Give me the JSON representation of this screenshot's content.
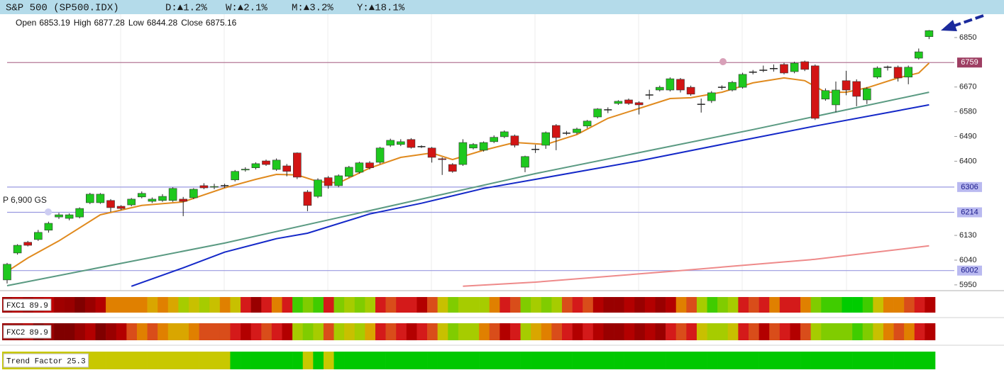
{
  "chart_data": {
    "type": "candlestick",
    "title": "S&P 500 (SP500.IDX)",
    "changes": [
      "D:▲1.2%",
      "W:▲2.1%",
      "M:▲3.2%",
      "Y:▲18.1%"
    ],
    "ohlc_info": [
      {
        "label": "Open",
        "value": 6853.19
      },
      {
        "label": "High",
        "value": 6877.28
      },
      {
        "label": "Low",
        "value": 6844.28
      },
      {
        "label": "Close",
        "value": 6875.16
      }
    ],
    "annotation": "P 6,900 GS",
    "ylim": [
      5929,
      6935
    ],
    "yticks": [
      5950,
      6040,
      6130,
      6400,
      6490,
      6580,
      6670,
      6850
    ],
    "up_color": "#1ec81e",
    "down_color": "#d21414",
    "open": [
      5968,
      6066,
      6105,
      6115,
      6149,
      6197,
      6192,
      6197,
      6249,
      6249,
      6257,
      6236,
      6241,
      6270,
      6254,
      6257,
      6257,
      6262,
      6267,
      6311,
      6306,
      6311,
      6332,
      6368,
      6376,
      6401,
      6370,
      6383,
      6430,
      6288,
      6272,
      6340,
      6311,
      6345,
      6360,
      6394,
      6396,
      6458,
      6461,
      6479,
      6453,
      6448,
      6409,
      6388,
      6388,
      6448,
      6440,
      6471,
      6489,
      6492,
      6378,
      6443,
      6458,
      6530,
      6502,
      6504,
      6528,
      6561,
      6587,
      6610,
      6623,
      6613,
      6641,
      6659,
      6659,
      6698,
      6669,
      6607,
      6620,
      6669,
      6659,
      6669,
      6724,
      6731,
      6737,
      6752,
      6726,
      6762,
      6747,
      6626,
      6605,
      6693,
      6690,
      6623,
      6706,
      6742,
      6742,
      6706,
      6775,
      6853.19
    ],
    "high": [
      6030,
      6098,
      6110,
      6150,
      6180,
      6212,
      6210,
      6232,
      6285,
      6284,
      6262,
      6240,
      6266,
      6290,
      6268,
      6280,
      6305,
      6270,
      6302,
      6320,
      6318,
      6318,
      6368,
      6378,
      6396,
      6406,
      6410,
      6390,
      6432,
      6295,
      6338,
      6346,
      6352,
      6383,
      6398,
      6400,
      6452,
      6482,
      6480,
      6484,
      6458,
      6452,
      6414,
      6393,
      6480,
      6466,
      6472,
      6494,
      6512,
      6497,
      6420,
      6460,
      6508,
      6535,
      6510,
      6522,
      6550,
      6593,
      6596,
      6622,
      6628,
      6618,
      6660,
      6675,
      6705,
      6703,
      6675,
      6628,
      6655,
      6676,
      6692,
      6722,
      6732,
      6748,
      6752,
      6758,
      6762,
      6766,
      6752,
      6665,
      6690,
      6729,
      6698,
      6670,
      6745,
      6748,
      6748,
      6748,
      6810,
      6877.28
    ],
    "low": [
      5955,
      6060,
      6090,
      6110,
      6140,
      6190,
      6185,
      6192,
      6244,
      6245,
      6215,
      6222,
      6236,
      6265,
      6248,
      6252,
      6252,
      6200,
      6262,
      6298,
      6298,
      6303,
      6326,
      6362,
      6370,
      6383,
      6365,
      6345,
      6335,
      6218,
      6266,
      6300,
      6305,
      6340,
      6355,
      6370,
      6390,
      6452,
      6455,
      6446,
      6448,
      6395,
      6350,
      6358,
      6383,
      6443,
      6435,
      6466,
      6484,
      6450,
      6360,
      6430,
      6445,
      6440,
      6495,
      6498,
      6520,
      6556,
      6575,
      6605,
      6605,
      6570,
      6625,
      6654,
      6654,
      6650,
      6638,
      6577,
      6612,
      6660,
      6654,
      6664,
      6716,
      6724,
      6726,
      6716,
      6720,
      6728,
      6550,
      6620,
      6578,
      6640,
      6600,
      6608,
      6700,
      6730,
      6690,
      6680,
      6770,
      6844.28
    ],
    "close": [
      6025,
      6094,
      6094,
      6141,
      6174,
      6205,
      6205,
      6228,
      6280,
      6280,
      6231,
      6228,
      6262,
      6283,
      6262,
      6272,
      6301,
      6254,
      6298,
      6303,
      6308,
      6311,
      6363,
      6371,
      6391,
      6388,
      6404,
      6363,
      6342,
      6239,
      6332,
      6311,
      6347,
      6378,
      6394,
      6376,
      6448,
      6476,
      6471,
      6450,
      6453,
      6414,
      6406,
      6363,
      6468,
      6461,
      6468,
      6487,
      6507,
      6458,
      6417,
      6443,
      6504,
      6486,
      6502,
      6517,
      6546,
      6590,
      6587,
      6618,
      6610,
      6605,
      6641,
      6669,
      6700,
      6659,
      6644,
      6607,
      6649,
      6669,
      6687,
      6716,
      6724,
      6731,
      6737,
      6721,
      6757,
      6734,
      6556,
      6657,
      6659,
      6659,
      6636,
      6664,
      6739,
      6742,
      6703,
      6742,
      6798,
      6875.16
    ],
    "lines": [
      {
        "color": "#e08a1e",
        "x": [
          0,
          2,
          5,
          9,
          13,
          17,
          21,
          24,
          26,
          28,
          30,
          32,
          35,
          38,
          41,
          43,
          46,
          49,
          52,
          55,
          58,
          61,
          64,
          66,
          69,
          72,
          75,
          77,
          79,
          81,
          83,
          86,
          88,
          89
        ],
        "values": [
          5999,
          6048,
          6110,
          6205,
          6239,
          6252,
          6303,
          6334,
          6352,
          6350,
          6326,
          6321,
          6375,
          6414,
          6430,
          6406,
          6440,
          6468,
          6461,
          6497,
          6556,
          6592,
          6628,
          6631,
          6651,
          6685,
          6703,
          6693,
          6651,
          6651,
          6667,
          6703,
          6721,
          6757
        ]
      },
      {
        "color": "#5a9a82",
        "x": [
          0,
          21,
          51,
          72,
          89
        ],
        "values": [
          5947,
          6102,
          6355,
          6515,
          6651
        ]
      },
      {
        "color": "#1428c8",
        "x": [
          12,
          17,
          21,
          26,
          29,
          35,
          40,
          46,
          51,
          61,
          71,
          78,
          86,
          89
        ],
        "values": [
          5945,
          6012,
          6069,
          6118,
          6138,
          6208,
          6247,
          6301,
          6334,
          6401,
          6476,
          6528,
          6584,
          6605
        ]
      },
      {
        "color": "#ee8a8a",
        "x": [
          44,
          51,
          65,
          78,
          89
        ],
        "values": [
          5945,
          5960,
          6002,
          6043,
          6092
        ]
      }
    ],
    "levels": [
      {
        "value": 6759,
        "color": "#b47896",
        "label_fill": "#9e3f63",
        "label_color": "#ffffff"
      },
      {
        "value": 6306,
        "color": "#9a9ae0",
        "label_fill": "#b9b9f0",
        "label_color": "#1a1a8a"
      },
      {
        "value": 6214,
        "color": "#9a9ae0",
        "label_fill": "#b9b9f0",
        "label_color": "#1a1a8a"
      },
      {
        "value": 6002,
        "color": "#9a9ae0",
        "label_fill": "#b9b9f0",
        "label_color": "#1a1a8a"
      }
    ],
    "indicators": [
      {
        "name": "FXC1",
        "value": 89.9,
        "colors": [
          "#a00000",
          "#b30000",
          "#a00000",
          "#b30000",
          "#c00000",
          "#a00000",
          "#990000",
          "#800000",
          "#990000",
          "#b30000",
          "#e08000",
          "#e08000",
          "#e08000",
          "#e08000",
          "#d9a600",
          "#e08000",
          "#d9a600",
          "#a6cc00",
          "#c8c000",
          "#a6cc00",
          "#c8c000",
          "#e08000",
          "#c8c000",
          "#d41a1a",
          "#990000",
          "#d41a1a",
          "#e08000",
          "#d41a1a",
          "#40cc00",
          "#80cc00",
          "#40cc00",
          "#d41a1a",
          "#80cc00",
          "#a6cc00",
          "#80cc00",
          "#a6cc00",
          "#d41a1a",
          "#d94d1a",
          "#d41a1a",
          "#d41a1a",
          "#b30000",
          "#d94d1a",
          "#c8c000",
          "#80cc00",
          "#a6cc00",
          "#a6cc00",
          "#a6cc00",
          "#e08000",
          "#d41a1a",
          "#d94d1a",
          "#80cc00",
          "#a6cc00",
          "#80cc00",
          "#a6cc00",
          "#d94d1a",
          "#d41a1a",
          "#d94d1a",
          "#b30000",
          "#990000",
          "#990000",
          "#b30000",
          "#990000",
          "#b30000",
          "#990000",
          "#b30000",
          "#e08000",
          "#d94d1a",
          "#a6cc00",
          "#40cc00",
          "#80cc00",
          "#a6cc00",
          "#d41a1a",
          "#d94d1a",
          "#d41a1a",
          "#e08000",
          "#d41a1a",
          "#d41a1a",
          "#e08000",
          "#80cc00",
          "#40cc00",
          "#40cc00",
          "#00cc00",
          "#00cc00",
          "#40cc00",
          "#c8c000",
          "#e08000",
          "#e08000",
          "#d94d1a",
          "#d41a1a",
          "#b30000"
        ]
      },
      {
        "name": "FXC2",
        "value": 89.9,
        "colors": [
          "#990000",
          "#990000",
          "#b30000",
          "#800000",
          "#990000",
          "#800000",
          "#800000",
          "#990000",
          "#b30000",
          "#800000",
          "#990000",
          "#b30000",
          "#d94d1a",
          "#e08000",
          "#d94d1a",
          "#e08000",
          "#d9a600",
          "#d9a600",
          "#e08000",
          "#d94d1a",
          "#d94d1a",
          "#d94d1a",
          "#d41a1a",
          "#b30000",
          "#d41a1a",
          "#d94d1a",
          "#d41a1a",
          "#b30000",
          "#a6cc00",
          "#80cc00",
          "#a6cc00",
          "#d94d1a",
          "#a6cc00",
          "#c8c000",
          "#a6cc00",
          "#d9a600",
          "#d41a1a",
          "#d94d1a",
          "#d41a1a",
          "#b30000",
          "#d41a1a",
          "#d94d1a",
          "#c8c000",
          "#80cc00",
          "#a6cc00",
          "#a6cc00",
          "#e08000",
          "#d94d1a",
          "#b30000",
          "#d41a1a",
          "#a6cc00",
          "#d9a600",
          "#e08000",
          "#d94d1a",
          "#d41a1a",
          "#b30000",
          "#d41a1a",
          "#b30000",
          "#990000",
          "#990000",
          "#b30000",
          "#990000",
          "#b30000",
          "#990000",
          "#d41a1a",
          "#d94d1a",
          "#d41a1a",
          "#c8c000",
          "#a6cc00",
          "#a6cc00",
          "#c8c000",
          "#d41a1a",
          "#d94d1a",
          "#b30000",
          "#d94d1a",
          "#d41a1a",
          "#b30000",
          "#d94d1a",
          "#a6cc00",
          "#80cc00",
          "#80cc00",
          "#80cc00",
          "#40cc00",
          "#80cc00",
          "#c8c000",
          "#e08000",
          "#d94d1a",
          "#e08000",
          "#d41a1a",
          "#b30000"
        ]
      },
      {
        "name": "Trend Factor",
        "value": 25.3,
        "colors": [
          "#c8c800",
          "#c8c800",
          "#c8c800",
          "#c8c800",
          "#c8c800",
          "#c8c800",
          "#c8c800",
          "#c8c800",
          "#c8c800",
          "#c8c800",
          "#c8c800",
          "#c8c800",
          "#c8c800",
          "#c8c800",
          "#c8c800",
          "#c8c800",
          "#c8c800",
          "#c8c800",
          "#c8c800",
          "#c8c800",
          "#c8c800",
          "#c8c800",
          "#00c800",
          "#00c800",
          "#00c800",
          "#00c800",
          "#00c800",
          "#00c800",
          "#00c800",
          "#c8c800",
          "#00c800",
          "#c8c800",
          "#00c800",
          "#00c800",
          "#00c800",
          "#00c800",
          "#00c800",
          "#00c800",
          "#00c800",
          "#00c800",
          "#00c800",
          "#00c800",
          "#00c800",
          "#00c800",
          "#00c800",
          "#00c800",
          "#00c800",
          "#00c800",
          "#00c800",
          "#00c800",
          "#00c800",
          "#00c800",
          "#00c800",
          "#00c800",
          "#00c800",
          "#00c800",
          "#00c800",
          "#00c800",
          "#00c800",
          "#00c800",
          "#00c800",
          "#00c800",
          "#00c800",
          "#00c800",
          "#00c800",
          "#00c800",
          "#00c800",
          "#00c800",
          "#00c800",
          "#00c800",
          "#00c800",
          "#00c800",
          "#00c800",
          "#00c800",
          "#00c800",
          "#00c800",
          "#00c800",
          "#00c800",
          "#00c800",
          "#00c800",
          "#00c800",
          "#00c800",
          "#00c800",
          "#00c800",
          "#00c800",
          "#00c800",
          "#00c800",
          "#00c800",
          "#00c800",
          "#00c800"
        ]
      }
    ]
  }
}
